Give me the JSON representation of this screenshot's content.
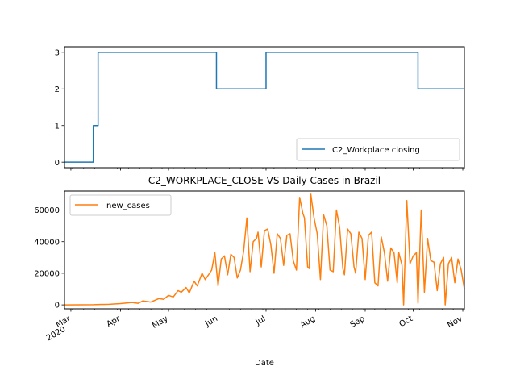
{
  "colors": {
    "series_workplace": "#1f77b4",
    "series_cases": "#ff7f0e",
    "axis": "#000000",
    "legend_border": "#cccccc"
  },
  "chart_data": [
    {
      "type": "line",
      "title": "",
      "xlabel": "",
      "ylabel": "",
      "x_range": [
        "2020-02-26",
        "2020-11-02"
      ],
      "ylim": [
        -0.15,
        3.15
      ],
      "yticks": [
        0,
        1,
        2,
        3
      ],
      "xticklabels_visible": false,
      "grid": false,
      "legend": "lower-right",
      "series": [
        {
          "name": "C2_Workplace closing",
          "color": "series_workplace",
          "step": true,
          "points": [
            [
              "2020-02-26",
              0
            ],
            [
              "2020-03-15",
              0
            ],
            [
              "2020-03-15",
              1
            ],
            [
              "2020-03-18",
              1
            ],
            [
              "2020-03-18",
              3
            ],
            [
              "2020-05-31",
              3
            ],
            [
              "2020-05-31",
              2
            ],
            [
              "2020-07-01",
              2
            ],
            [
              "2020-07-01",
              3
            ],
            [
              "2020-10-04",
              3
            ],
            [
              "2020-10-04",
              2
            ],
            [
              "2020-11-02",
              2
            ]
          ]
        }
      ]
    },
    {
      "type": "line",
      "title": "C2_WORKPLACE_CLOSE VS Daily Cases in Brazil",
      "xlabel": "Date",
      "ylabel": "",
      "x_range": [
        "2020-02-26",
        "2020-11-02"
      ],
      "ylim": [
        -2500,
        72000
      ],
      "yticks": [
        0,
        20000,
        40000,
        60000
      ],
      "xticks": [
        {
          "date": "2020-03-01",
          "label": "Mar",
          "sublabel": "2020"
        },
        {
          "date": "2020-04-01",
          "label": "Apr"
        },
        {
          "date": "2020-05-01",
          "label": "May"
        },
        {
          "date": "2020-06-01",
          "label": "Jun"
        },
        {
          "date": "2020-07-01",
          "label": "Jul"
        },
        {
          "date": "2020-08-01",
          "label": "Aug"
        },
        {
          "date": "2020-09-01",
          "label": "Sep"
        },
        {
          "date": "2020-10-01",
          "label": "Oct"
        },
        {
          "date": "2020-11-01",
          "label": "Nov"
        }
      ],
      "grid": false,
      "legend": "top-left",
      "series": [
        {
          "name": "new_cases",
          "color": "series_cases",
          "points": [
            [
              "2020-02-26",
              0
            ],
            [
              "2020-03-15",
              100
            ],
            [
              "2020-03-25",
              400
            ],
            [
              "2020-04-01",
              800
            ],
            [
              "2020-04-08",
              1500
            ],
            [
              "2020-04-12",
              1000
            ],
            [
              "2020-04-15",
              2500
            ],
            [
              "2020-04-20",
              1800
            ],
            [
              "2020-04-25",
              4000
            ],
            [
              "2020-04-28",
              3500
            ],
            [
              "2020-05-01",
              6000
            ],
            [
              "2020-05-04",
              5000
            ],
            [
              "2020-05-07",
              9000
            ],
            [
              "2020-05-09",
              8000
            ],
            [
              "2020-05-12",
              11000
            ],
            [
              "2020-05-14",
              7500
            ],
            [
              "2020-05-17",
              15000
            ],
            [
              "2020-05-19",
              12000
            ],
            [
              "2020-05-22",
              20000
            ],
            [
              "2020-05-24",
              16000
            ],
            [
              "2020-05-26",
              19000
            ],
            [
              "2020-05-28",
              22000
            ],
            [
              "2020-05-30",
              33000
            ],
            [
              "2020-06-01",
              12000
            ],
            [
              "2020-06-03",
              29000
            ],
            [
              "2020-06-05",
              31000
            ],
            [
              "2020-06-07",
              19000
            ],
            [
              "2020-06-09",
              32000
            ],
            [
              "2020-06-11",
              30000
            ],
            [
              "2020-06-13",
              17000
            ],
            [
              "2020-06-15",
              22000
            ],
            [
              "2020-06-17",
              34000
            ],
            [
              "2020-06-19",
              55000
            ],
            [
              "2020-06-21",
              21000
            ],
            [
              "2020-06-23",
              40000
            ],
            [
              "2020-06-25",
              42000
            ],
            [
              "2020-06-26",
              46000
            ],
            [
              "2020-06-28",
              24000
            ],
            [
              "2020-06-30",
              47000
            ],
            [
              "2020-07-02",
              48000
            ],
            [
              "2020-07-04",
              38000
            ],
            [
              "2020-07-06",
              20000
            ],
            [
              "2020-07-08",
              45000
            ],
            [
              "2020-07-10",
              42000
            ],
            [
              "2020-07-12",
              25000
            ],
            [
              "2020-07-14",
              44000
            ],
            [
              "2020-07-16",
              45000
            ],
            [
              "2020-07-18",
              28000
            ],
            [
              "2020-07-20",
              22000
            ],
            [
              "2020-07-22",
              68000
            ],
            [
              "2020-07-24",
              58000
            ],
            [
              "2020-07-25",
              55000
            ],
            [
              "2020-07-27",
              24000
            ],
            [
              "2020-07-28",
              23000
            ],
            [
              "2020-07-29",
              70000
            ],
            [
              "2020-07-31",
              55000
            ],
            [
              "2020-08-02",
              45000
            ],
            [
              "2020-08-04",
              16000
            ],
            [
              "2020-08-06",
              57000
            ],
            [
              "2020-08-08",
              50000
            ],
            [
              "2020-08-10",
              22000
            ],
            [
              "2020-08-12",
              21000
            ],
            [
              "2020-08-14",
              60000
            ],
            [
              "2020-08-16",
              49000
            ],
            [
              "2020-08-18",
              23000
            ],
            [
              "2020-08-19",
              19000
            ],
            [
              "2020-08-21",
              48000
            ],
            [
              "2020-08-23",
              45000
            ],
            [
              "2020-08-25",
              24000
            ],
            [
              "2020-08-26",
              20000
            ],
            [
              "2020-08-28",
              46000
            ],
            [
              "2020-08-30",
              42000
            ],
            [
              "2020-09-01",
              16000
            ],
            [
              "2020-09-03",
              44000
            ],
            [
              "2020-09-05",
              46000
            ],
            [
              "2020-09-07",
              14000
            ],
            [
              "2020-09-09",
              12000
            ],
            [
              "2020-09-11",
              43000
            ],
            [
              "2020-09-13",
              33000
            ],
            [
              "2020-09-15",
              15000
            ],
            [
              "2020-09-17",
              36000
            ],
            [
              "2020-09-19",
              33000
            ],
            [
              "2020-09-21",
              14000
            ],
            [
              "2020-09-22",
              33000
            ],
            [
              "2020-09-24",
              25000
            ],
            [
              "2020-09-25",
              0
            ],
            [
              "2020-09-27",
              66000
            ],
            [
              "2020-09-29",
              26000
            ],
            [
              "2020-10-01",
              31000
            ],
            [
              "2020-10-03",
              33000
            ],
            [
              "2020-10-04",
              1000
            ],
            [
              "2020-10-06",
              60000
            ],
            [
              "2020-10-08",
              8000
            ],
            [
              "2020-10-10",
              42000
            ],
            [
              "2020-10-12",
              28000
            ],
            [
              "2020-10-14",
              27000
            ],
            [
              "2020-10-16",
              9000
            ],
            [
              "2020-10-18",
              26000
            ],
            [
              "2020-10-20",
              30000
            ],
            [
              "2020-10-21",
              0
            ],
            [
              "2020-10-23",
              26000
            ],
            [
              "2020-10-25",
              30000
            ],
            [
              "2020-10-27",
              14000
            ],
            [
              "2020-10-29",
              29000
            ],
            [
              "2020-10-31",
              22000
            ],
            [
              "2020-11-02",
              10000
            ]
          ]
        }
      ]
    }
  ]
}
